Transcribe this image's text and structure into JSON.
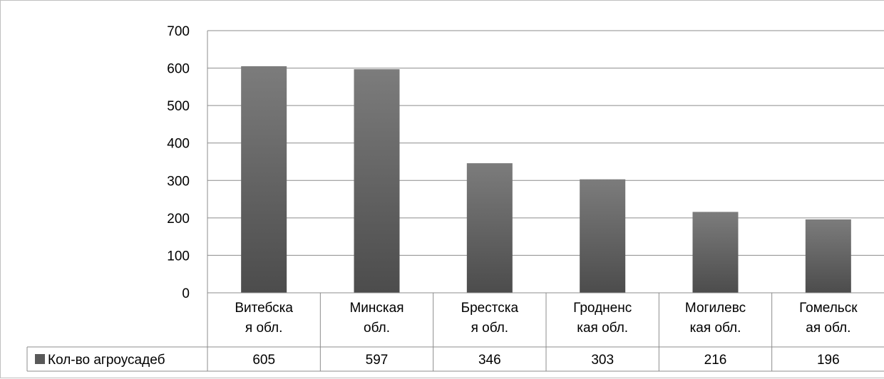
{
  "chart_data": {
    "type": "bar",
    "categories": [
      [
        "Витебска",
        "я обл."
      ],
      [
        "Минская",
        "обл."
      ],
      [
        "Брестска",
        "я обл."
      ],
      [
        "Гродненс",
        "кая обл."
      ],
      [
        "Могилевс",
        "кая обл."
      ],
      [
        "Гомельск",
        "ая обл."
      ]
    ],
    "series": [
      {
        "name": "Кол-во агроусадеб",
        "values": [
          605,
          597,
          346,
          303,
          216,
          196
        ]
      }
    ],
    "ylim": [
      0,
      700
    ],
    "yticks": [
      "0",
      "100",
      "200",
      "300",
      "400",
      "500",
      "600",
      "700"
    ],
    "grid": true,
    "data_table": true,
    "legend": "data-table-left",
    "colors": {
      "bar_top": "#7c7c7c",
      "bar_bottom": "#4c4c4c",
      "grid": "#8c8c8c",
      "table_border": "#8c8c8c",
      "legend_key": "#595959"
    }
  }
}
